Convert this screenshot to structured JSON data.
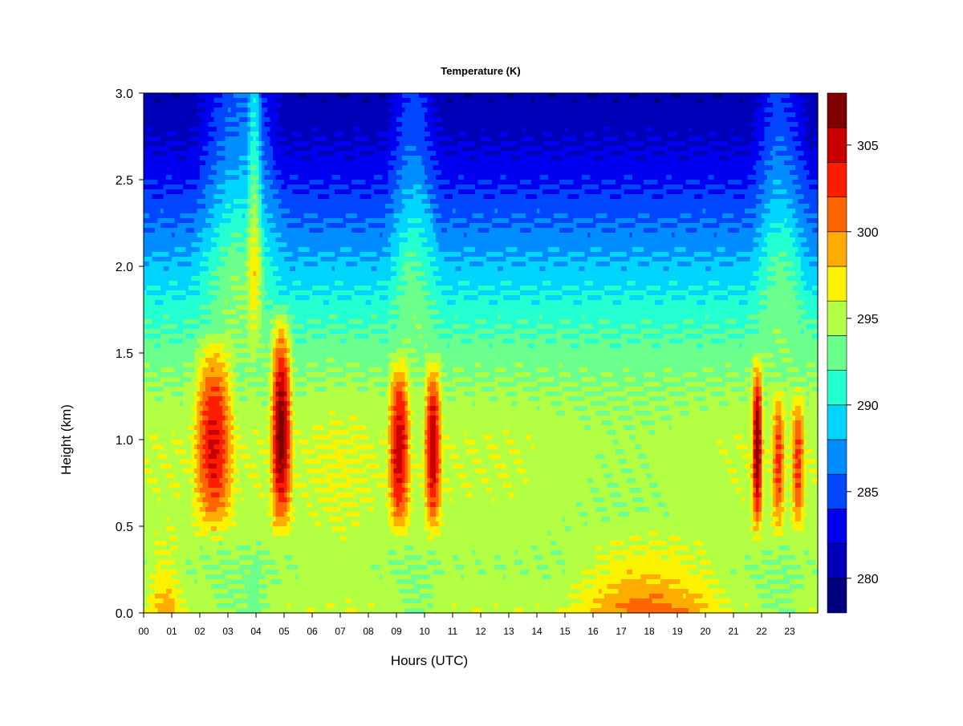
{
  "chart_data": {
    "type": "heatmap",
    "title": "Temperature (K)",
    "xlabel": "Hours (UTC)",
    "ylabel": "Height (km)",
    "x_ticks": [
      "00",
      "01",
      "02",
      "03",
      "04",
      "05",
      "06",
      "07",
      "08",
      "09",
      "10",
      "11",
      "12",
      "13",
      "14",
      "15",
      "16",
      "17",
      "18",
      "19",
      "20",
      "21",
      "22",
      "23"
    ],
    "xlim": [
      0,
      24
    ],
    "y_ticks": [
      "0.0",
      "0.5",
      "1.0",
      "1.5",
      "2.0",
      "2.5",
      "3.0"
    ],
    "ylim": [
      0,
      3.0
    ],
    "colorbar": {
      "range": [
        278,
        308
      ],
      "labels": [
        {
          "value": 280,
          "text": "280"
        },
        {
          "value": 285,
          "text": "285"
        },
        {
          "value": 290,
          "text": "290"
        },
        {
          "value": 295,
          "text": "295"
        },
        {
          "value": 300,
          "text": "300"
        },
        {
          "value": 305,
          "text": "305"
        }
      ],
      "levels": [
        278,
        280,
        282,
        284,
        286,
        288,
        290,
        292,
        294,
        296,
        298,
        300,
        302,
        304,
        306,
        308
      ],
      "colors": [
        "#00007f",
        "#0000b8",
        "#0000f0",
        "#0045ff",
        "#008dff",
        "#00d5ff",
        "#24ffd2",
        "#6bff8b",
        "#b3ff43",
        "#fbf200",
        "#ffac00",
        "#ff6500",
        "#ff1d00",
        "#c90000",
        "#800000"
      ]
    },
    "profile": {
      "heights": [
        0.0,
        0.25,
        0.5,
        0.75,
        1.0,
        1.25,
        1.5,
        1.75,
        2.0,
        2.25,
        2.5,
        2.75,
        3.0
      ],
      "base_temps": [
        295.5,
        294.5,
        295.0,
        295.5,
        295.5,
        294.5,
        293.0,
        291.0,
        288.5,
        286.0,
        283.5,
        281.5,
        280.5
      ]
    },
    "features": [
      {
        "kind": "surface_warm",
        "x0": 0.0,
        "x1": 1.55,
        "amp": 4.0
      },
      {
        "kind": "surface_warm",
        "x0": 14.6,
        "x1": 21.2,
        "amp": 6.0
      },
      {
        "kind": "plume",
        "x0": 1.6,
        "x1": 3.4,
        "z0": 0.45,
        "z1": 1.6,
        "amp": 9.0
      },
      {
        "kind": "plume",
        "x0": 4.4,
        "x1": 5.4,
        "z0": 0.45,
        "z1": 1.75,
        "amp": 12.0
      },
      {
        "kind": "plume",
        "x0": 8.6,
        "x1": 9.6,
        "z0": 0.45,
        "z1": 1.5,
        "amp": 10.0
      },
      {
        "kind": "plume",
        "x0": 9.9,
        "x1": 10.7,
        "z0": 0.45,
        "z1": 1.5,
        "amp": 10.0
      },
      {
        "kind": "plume",
        "x0": 21.6,
        "x1": 22.1,
        "z0": 0.45,
        "z1": 1.5,
        "amp": 12.0
      },
      {
        "kind": "plume",
        "x0": 22.3,
        "x1": 22.9,
        "z0": 0.45,
        "z1": 1.3,
        "amp": 7.0
      },
      {
        "kind": "plume",
        "x0": 23.0,
        "x1": 23.6,
        "z0": 0.45,
        "z1": 1.3,
        "amp": 7.0
      },
      {
        "kind": "column_cool",
        "x0": 1.6,
        "x1": 5.2,
        "amp": 5.0
      },
      {
        "kind": "column_cool",
        "x0": 8.5,
        "x1": 10.7,
        "amp": 4.0
      },
      {
        "kind": "column_cool",
        "x0": 21.5,
        "x1": 23.8,
        "amp": 4.0
      },
      {
        "kind": "column_cool",
        "x0": 3.6,
        "x1": 4.3,
        "amp": 5.0
      }
    ]
  }
}
